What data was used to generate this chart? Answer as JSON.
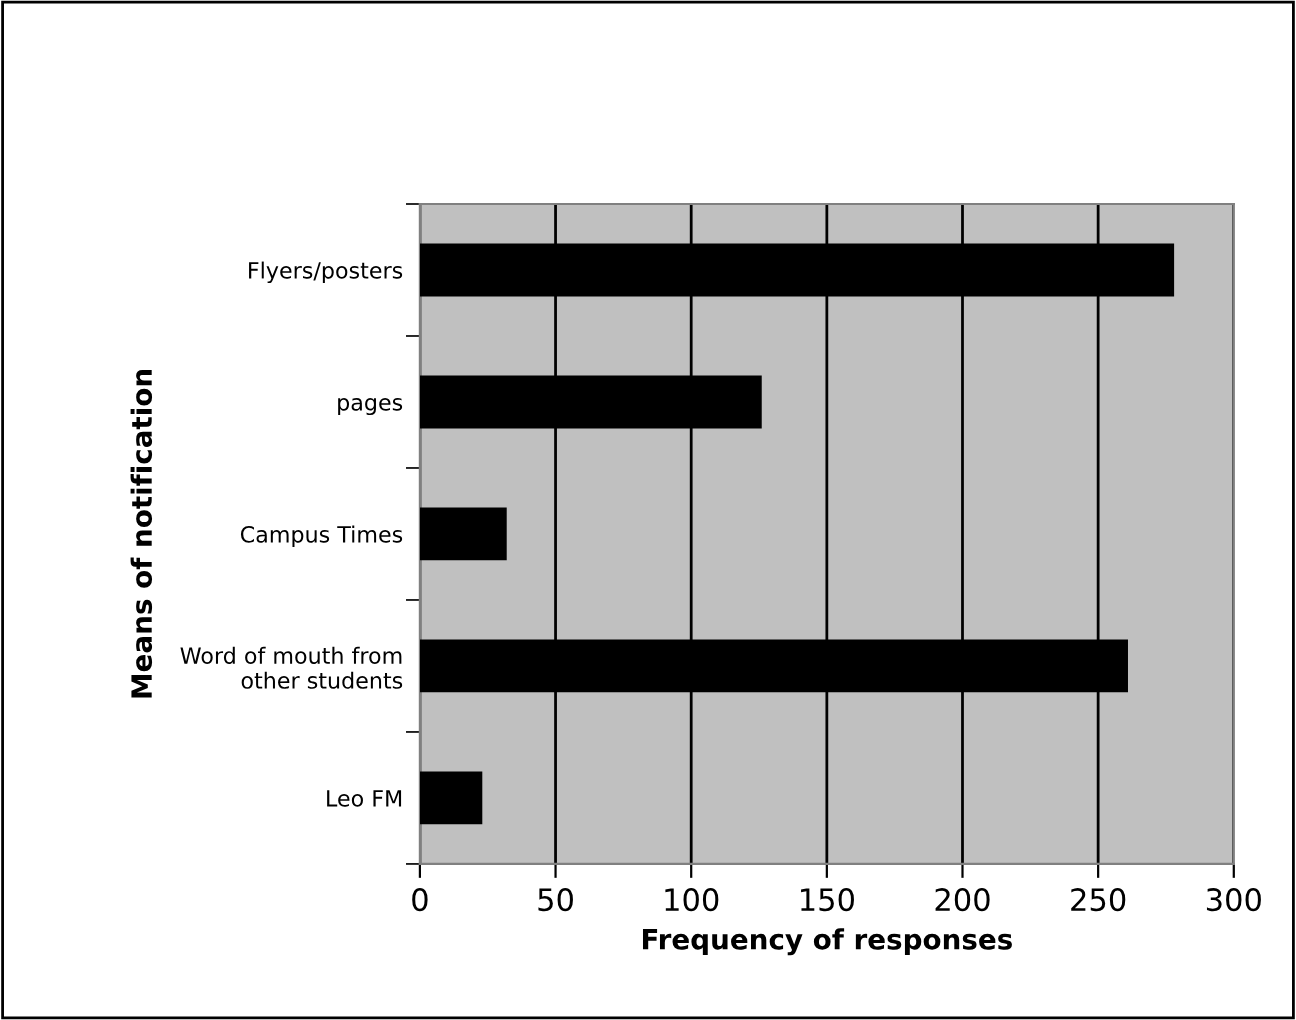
{
  "chart_data": {
    "type": "bar",
    "orientation": "horizontal",
    "xlabel": "Frequency of responses",
    "ylabel": "Means of notification",
    "categories": [
      "Flyers/posters",
      "pages",
      "Campus Times",
      "Word of mouth from\nother students",
      "Leo FM"
    ],
    "values": [
      278,
      126,
      32,
      261,
      23
    ],
    "color": "#000000",
    "xlim": [
      0,
      300
    ],
    "xticks": [
      0,
      50,
      100,
      150,
      200,
      250,
      300
    ],
    "grid": "x"
  }
}
